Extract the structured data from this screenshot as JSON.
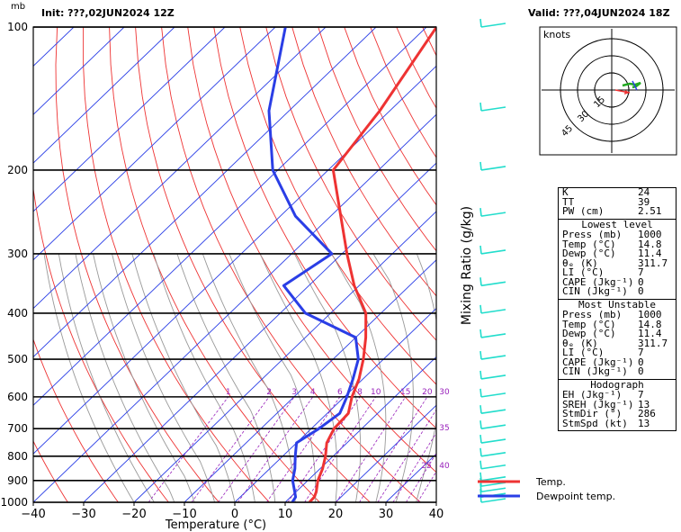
{
  "header": {
    "unit_label": "mb",
    "init": "Init: ???,02JUN2024  12Z",
    "valid": "Valid: ???,04JUN2024  18Z"
  },
  "axes": {
    "xlabel": "Temperature (°C)",
    "mixing_label": "Mixing Ratio (g/kg)"
  },
  "chart_data": {
    "type": "skew-t",
    "x_ticks": [
      -40,
      -30,
      -20,
      -10,
      0,
      10,
      20,
      30,
      40
    ],
    "x_tick_labels": [
      "−40",
      "−30",
      "−20",
      "−10",
      "0",
      "10",
      "20",
      "30",
      "40"
    ],
    "xlim": [
      -40,
      40
    ],
    "pressure_levels": [
      100,
      200,
      300,
      400,
      500,
      600,
      700,
      800,
      900,
      1000
    ],
    "mixing_ratios": [
      1,
      2,
      3,
      4,
      6,
      8,
      10,
      15,
      20,
      25,
      30,
      35,
      40
    ],
    "mixing_ratio_labels": [
      "1",
      "2",
      "3",
      "4",
      "6",
      "8",
      "10",
      "15",
      "20",
      "25",
      "30",
      "35",
      "40"
    ],
    "series": [
      {
        "name": "Temp.",
        "color": "#ee3333",
        "points": [
          {
            "p": 1000,
            "t": 14.8
          },
          {
            "p": 975,
            "t": 14.7
          },
          {
            "p": 950,
            "t": 14.0
          },
          {
            "p": 900,
            "t": 12.0
          },
          {
            "p": 850,
            "t": 10.5
          },
          {
            "p": 800,
            "t": 8.5
          },
          {
            "p": 750,
            "t": 6.0
          },
          {
            "p": 700,
            "t": 4.5
          },
          {
            "p": 650,
            "t": 4.2
          },
          {
            "p": 600,
            "t": 1.5
          },
          {
            "p": 550,
            "t": -0.8
          },
          {
            "p": 500,
            "t": -4.0
          },
          {
            "p": 450,
            "t": -8.0
          },
          {
            "p": 400,
            "t": -13.0
          },
          {
            "p": 350,
            "t": -21.0
          },
          {
            "p": 300,
            "t": -29.0
          },
          {
            "p": 250,
            "t": -38.0
          },
          {
            "p": 200,
            "t": -49.0
          },
          {
            "p": 150,
            "t": -52.0
          },
          {
            "p": 100,
            "t": -58.0
          }
        ]
      },
      {
        "name": "Dewpoint temp.",
        "color": "#2a3ee6",
        "points": [
          {
            "p": 1000,
            "t": 11.4
          },
          {
            "p": 975,
            "t": 11.0
          },
          {
            "p": 950,
            "t": 9.7
          },
          {
            "p": 900,
            "t": 7.0
          },
          {
            "p": 850,
            "t": 5.0
          },
          {
            "p": 800,
            "t": 2.5
          },
          {
            "p": 750,
            "t": 0.0
          },
          {
            "p": 700,
            "t": 1.5
          },
          {
            "p": 650,
            "t": 2.5
          },
          {
            "p": 600,
            "t": 0.5
          },
          {
            "p": 550,
            "t": -2.0
          },
          {
            "p": 500,
            "t": -5.0
          },
          {
            "p": 450,
            "t": -10.0
          },
          {
            "p": 400,
            "t": -25.0
          },
          {
            "p": 350,
            "t": -35.0
          },
          {
            "p": 300,
            "t": -32.0
          },
          {
            "p": 250,
            "t": -47.0
          },
          {
            "p": 200,
            "t": -61.0
          },
          {
            "p": 150,
            "t": -74.0
          },
          {
            "p": 100,
            "t": -88.0
          }
        ]
      }
    ],
    "hodograph": {
      "unit": "knots",
      "ring_labels": [
        "15",
        "30",
        "45"
      ]
    }
  },
  "indices": {
    "top": [
      {
        "k": "K",
        "v": "24"
      },
      {
        "k": "TT",
        "v": "39"
      },
      {
        "k": "PW (cm)",
        "v": "2.51"
      }
    ],
    "lowest_title": "Lowest level",
    "lowest": [
      {
        "k": "Press (mb)",
        "v": "1000"
      },
      {
        "k": "Temp  (°C)",
        "v": "14.8"
      },
      {
        "k": "Dewp  (°C)",
        "v": "11.4"
      },
      {
        "k": "θₑ (K)",
        "v": "311.7"
      },
      {
        "k": "LI  (°C)",
        "v": "7"
      },
      {
        "k": "CAPE (Jkg⁻¹)",
        "v": "0"
      },
      {
        "k": "CIN  (Jkg⁻¹)",
        "v": "0"
      }
    ],
    "unstable_title": "Most Unstable",
    "unstable": [
      {
        "k": "Press (mb)",
        "v": "1000"
      },
      {
        "k": "Temp  (°C)",
        "v": "14.8"
      },
      {
        "k": "Dewp  (°C)",
        "v": "11.4"
      },
      {
        "k": "θₑ (K)",
        "v": "311.7"
      },
      {
        "k": "LI  (°C)",
        "v": "7"
      },
      {
        "k": "CAPE (Jkg⁻¹)",
        "v": "0"
      },
      {
        "k": "CIN  (Jkg⁻¹)",
        "v": "0"
      }
    ],
    "hodo_title": "Hodograph",
    "hodo": [
      {
        "k": "EH  (Jkg⁻¹)",
        "v": "7"
      },
      {
        "k": "SREH (Jkg⁻¹)",
        "v": "13"
      },
      {
        "k": "StmDir (°)",
        "v": "286"
      },
      {
        "k": "StmSpd (kt)",
        "v": "13"
      }
    ]
  }
}
